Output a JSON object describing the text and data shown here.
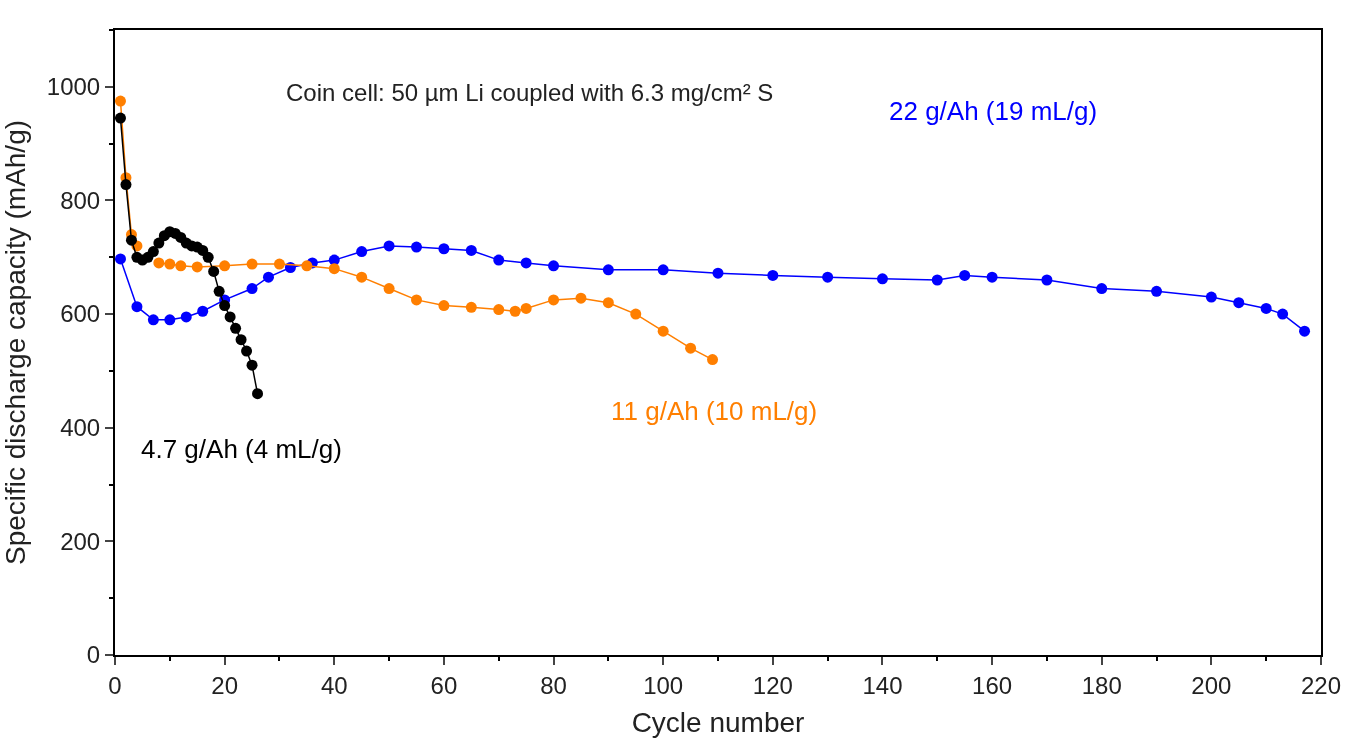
{
  "chart_data": {
    "type": "line",
    "xlabel": "Cycle number",
    "ylabel": "Specific discharge capacity (mAh/g)",
    "xlim": [
      0,
      220
    ],
    "ylim": [
      0,
      1100
    ],
    "xticks": [
      0,
      20,
      40,
      60,
      80,
      100,
      120,
      140,
      160,
      180,
      200,
      220
    ],
    "yticks": [
      0,
      200,
      400,
      600,
      800,
      1000
    ],
    "legend": false,
    "marker": "circle",
    "line_style": "solid",
    "annotations": [
      "Coin cell: 50 µm Li coupled with 6.3 mg/cm² S"
    ],
    "series": [
      {
        "name": "22 g/Ah (19 mL/g)",
        "color": "#0000ff",
        "x": [
          1,
          4,
          7,
          10,
          13,
          16,
          20,
          25,
          28,
          32,
          36,
          40,
          45,
          50,
          55,
          60,
          65,
          70,
          75,
          80,
          90,
          100,
          110,
          120,
          130,
          140,
          150,
          155,
          160,
          170,
          180,
          190,
          200,
          205,
          210,
          213,
          217
        ],
        "values": [
          697,
          613,
          590,
          590,
          595,
          605,
          625,
          645,
          665,
          682,
          690,
          695,
          710,
          720,
          718,
          715,
          712,
          695,
          690,
          685,
          678,
          678,
          672,
          668,
          665,
          662,
          660,
          668,
          665,
          660,
          645,
          640,
          630,
          620,
          610,
          600,
          570
        ]
      },
      {
        "name": "11 g/Ah (10 mL/g)",
        "color": "#ff7f00",
        "x": [
          1,
          2,
          3,
          4,
          5,
          6,
          8,
          10,
          12,
          15,
          20,
          25,
          30,
          35,
          40,
          45,
          50,
          55,
          60,
          65,
          70,
          73,
          75,
          80,
          85,
          90,
          95,
          100,
          105,
          109
        ],
        "values": [
          975,
          840,
          740,
          720,
          null,
          null,
          690,
          688,
          685,
          683,
          685,
          688,
          688,
          685,
          680,
          665,
          645,
          625,
          615,
          612,
          608,
          605,
          610,
          625,
          628,
          620,
          600,
          570,
          540,
          520
        ]
      },
      {
        "name": "4.7 g/Ah (4 mL/g)",
        "color": "#000000",
        "x": [
          1,
          2,
          3,
          4,
          5,
          6,
          7,
          8,
          9,
          10,
          11,
          12,
          13,
          14,
          15,
          16,
          17,
          18,
          19,
          20,
          21,
          22,
          23,
          24,
          25,
          26
        ],
        "values": [
          945,
          828,
          730,
          700,
          695,
          700,
          710,
          725,
          738,
          745,
          742,
          735,
          725,
          720,
          718,
          712,
          700,
          675,
          640,
          615,
          595,
          575,
          555,
          535,
          510,
          460
        ]
      }
    ]
  }
}
